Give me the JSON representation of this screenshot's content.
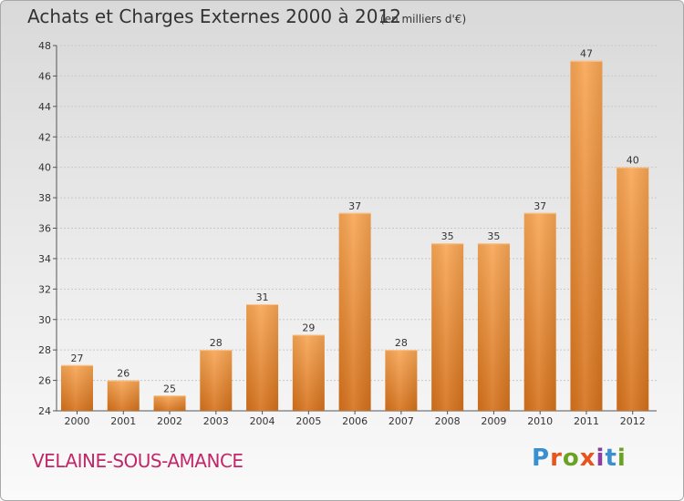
{
  "chart_data": {
    "type": "bar",
    "title": "Achats et Charges Externes 2000 à 2012",
    "subtitle": "(en milliers d'€)",
    "categories": [
      "2000",
      "2001",
      "2002",
      "2003",
      "2004",
      "2005",
      "2006",
      "2007",
      "2008",
      "2009",
      "2010",
      "2011",
      "2012"
    ],
    "values": [
      27,
      26,
      25,
      28,
      31,
      29,
      37,
      28,
      35,
      35,
      37,
      47,
      40
    ],
    "ylim": [
      24,
      48
    ],
    "yticks": [
      24,
      26,
      28,
      30,
      32,
      34,
      36,
      38,
      40,
      42,
      44,
      46,
      48
    ],
    "grid": true,
    "bar_color_top": "#f8a654",
    "bar_color_bottom": "#d5711b"
  },
  "commune": "VELAINE-SOUS-AMANCE",
  "logo": {
    "text": "Proxiti",
    "colors": [
      "#3a8fd0",
      "#e8541c",
      "#6aa324",
      "#e8541c",
      "#8a3ea0",
      "#3a8fd0",
      "#6aa324"
    ]
  }
}
